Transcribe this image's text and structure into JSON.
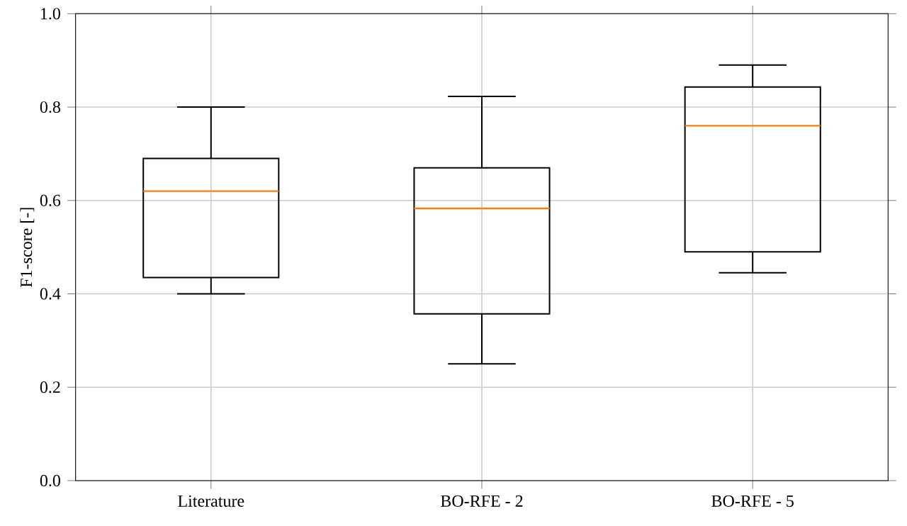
{
  "chart_data": {
    "type": "box",
    "ylabel": "F1-score [-]",
    "categories": [
      "Literature",
      "BO-RFE - 2",
      "BO-RFE - 5"
    ],
    "boxes": [
      {
        "low": 0.4,
        "q1": 0.435,
        "median": 0.62,
        "q3": 0.69,
        "high": 0.8
      },
      {
        "low": 0.25,
        "q1": 0.357,
        "median": 0.583,
        "q3": 0.67,
        "high": 0.823
      },
      {
        "low": 0.445,
        "q1": 0.49,
        "median": 0.76,
        "q3": 0.843,
        "high": 0.89
      }
    ],
    "color": "#000000",
    "ylim": [
      0.0,
      1.0
    ],
    "yticks": [
      {
        "value": 0.0,
        "label": "0.0"
      },
      {
        "value": 0.2,
        "label": "0.2"
      },
      {
        "value": 0.4,
        "label": "0.4"
      },
      {
        "value": 0.6,
        "label": "0.6"
      },
      {
        "value": 0.8,
        "label": "0.8"
      },
      {
        "value": 1.0,
        "label": "1.0"
      }
    ],
    "grid": true
  }
}
